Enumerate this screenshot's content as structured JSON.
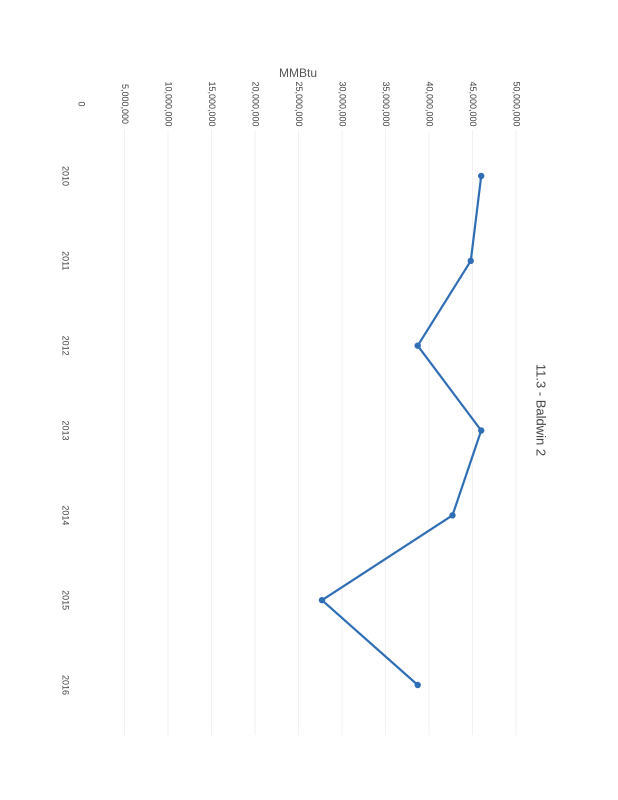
{
  "chart_data": {
    "type": "line",
    "title": "11.3 - Baldwin 2",
    "unit_label": "MMBtu",
    "ylabel": "",
    "xlabel": "",
    "categories": [
      "2010",
      "2011",
      "2012",
      "2013",
      "2014",
      "2015",
      "2016"
    ],
    "values": [
      46000000,
      44800000,
      38700000,
      46000000,
      42700000,
      27700000,
      38700000
    ],
    "y_ticks": [
      "0",
      "5,000,000",
      "10,000,000",
      "15,000,000",
      "20,000,000",
      "25,000,000",
      "30,000,000",
      "35,000,000",
      "40,000,000",
      "45,000,000",
      "50,000,000"
    ],
    "ylim": [
      0,
      50000000
    ],
    "grid": true,
    "orientation": "rotated-90-clockwise",
    "series_color": "#2f6eb5"
  }
}
